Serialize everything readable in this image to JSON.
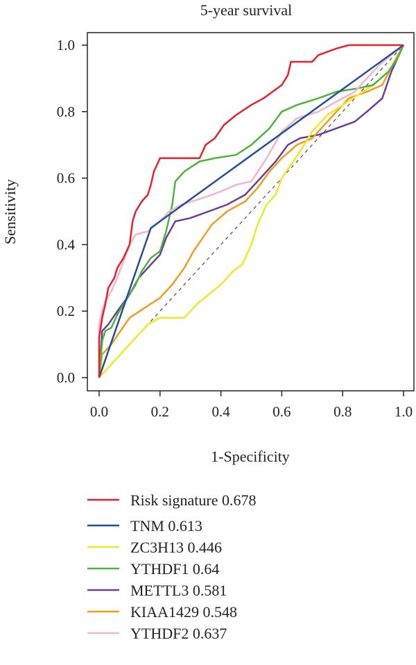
{
  "chart_data": {
    "type": "line",
    "title": "5-year survival",
    "xlabel": "1-Specificity",
    "ylabel": "Sensitivity",
    "xlim": [
      0,
      1
    ],
    "ylim": [
      0,
      1
    ],
    "x_ticks": [
      "0.0",
      "0.2",
      "0.4",
      "0.6",
      "0.8",
      "1.0"
    ],
    "y_ticks": [
      "0.0",
      "0.2",
      "0.4",
      "0.6",
      "0.8",
      "1.0"
    ],
    "reference_line": {
      "style": "dashed",
      "color": "#555555",
      "points": [
        [
          0,
          0
        ],
        [
          1,
          1
        ]
      ]
    },
    "legend_position": "bottom",
    "series": [
      {
        "name": "Risk signature 0.678",
        "color": "#e8202a",
        "points": [
          [
            0,
            0
          ],
          [
            0,
            0.12
          ],
          [
            0.01,
            0.18
          ],
          [
            0.02,
            0.22
          ],
          [
            0.03,
            0.27
          ],
          [
            0.05,
            0.3
          ],
          [
            0.06,
            0.33
          ],
          [
            0.08,
            0.36
          ],
          [
            0.1,
            0.4
          ],
          [
            0.11,
            0.47
          ],
          [
            0.12,
            0.5
          ],
          [
            0.14,
            0.53
          ],
          [
            0.16,
            0.55
          ],
          [
            0.17,
            0.58
          ],
          [
            0.18,
            0.62
          ],
          [
            0.2,
            0.66
          ],
          [
            0.33,
            0.66
          ],
          [
            0.35,
            0.7
          ],
          [
            0.38,
            0.72
          ],
          [
            0.41,
            0.76
          ],
          [
            0.45,
            0.79
          ],
          [
            0.5,
            0.82
          ],
          [
            0.54,
            0.84
          ],
          [
            0.57,
            0.86
          ],
          [
            0.6,
            0.88
          ],
          [
            0.62,
            0.91
          ],
          [
            0.63,
            0.95
          ],
          [
            0.7,
            0.95
          ],
          [
            0.72,
            0.97
          ],
          [
            0.78,
            0.99
          ],
          [
            0.82,
            1.0
          ],
          [
            1.0,
            1.0
          ]
        ]
      },
      {
        "name": "TNM 0.613",
        "color": "#1f4e9c",
        "points": [
          [
            0,
            0
          ],
          [
            0.17,
            0.45
          ],
          [
            1.0,
            1.0
          ]
        ]
      },
      {
        "name": "ZC3H13 0.446",
        "color": "#f2e627",
        "points": [
          [
            0,
            0
          ],
          [
            0.03,
            0.03
          ],
          [
            0.05,
            0.05
          ],
          [
            0.08,
            0.08
          ],
          [
            0.1,
            0.1
          ],
          [
            0.13,
            0.13
          ],
          [
            0.16,
            0.16
          ],
          [
            0.2,
            0.18
          ],
          [
            0.28,
            0.18
          ],
          [
            0.32,
            0.22
          ],
          [
            0.36,
            0.25
          ],
          [
            0.4,
            0.28
          ],
          [
            0.44,
            0.32
          ],
          [
            0.47,
            0.34
          ],
          [
            0.5,
            0.4
          ],
          [
            0.52,
            0.46
          ],
          [
            0.55,
            0.52
          ],
          [
            0.58,
            0.55
          ],
          [
            0.6,
            0.6
          ],
          [
            0.63,
            0.64
          ],
          [
            0.66,
            0.68
          ],
          [
            0.7,
            0.74
          ],
          [
            0.75,
            0.79
          ],
          [
            0.8,
            0.82
          ],
          [
            0.85,
            0.85
          ],
          [
            0.9,
            0.88
          ],
          [
            0.95,
            0.92
          ],
          [
            0.98,
            0.96
          ],
          [
            1.0,
            1.0
          ]
        ]
      },
      {
        "name": "YTHDF1 0.64",
        "color": "#4db33a",
        "points": [
          [
            0,
            0
          ],
          [
            0.01,
            0.11
          ],
          [
            0.02,
            0.14
          ],
          [
            0.04,
            0.15
          ],
          [
            0.06,
            0.19
          ],
          [
            0.08,
            0.22
          ],
          [
            0.12,
            0.28
          ],
          [
            0.14,
            0.32
          ],
          [
            0.17,
            0.36
          ],
          [
            0.2,
            0.38
          ],
          [
            0.22,
            0.44
          ],
          [
            0.24,
            0.52
          ],
          [
            0.25,
            0.59
          ],
          [
            0.28,
            0.62
          ],
          [
            0.33,
            0.65
          ],
          [
            0.38,
            0.66
          ],
          [
            0.45,
            0.67
          ],
          [
            0.5,
            0.7
          ],
          [
            0.56,
            0.75
          ],
          [
            0.6,
            0.8
          ],
          [
            0.65,
            0.82
          ],
          [
            0.72,
            0.84
          ],
          [
            0.78,
            0.86
          ],
          [
            0.85,
            0.87
          ],
          [
            0.9,
            0.88
          ],
          [
            0.95,
            0.92
          ],
          [
            0.98,
            0.96
          ],
          [
            1.0,
            1.0
          ]
        ]
      },
      {
        "name": "METTL3 0.581",
        "color": "#6a3d9a",
        "points": [
          [
            0,
            0
          ],
          [
            0.01,
            0.14
          ],
          [
            0.03,
            0.16
          ],
          [
            0.06,
            0.2
          ],
          [
            0.1,
            0.25
          ],
          [
            0.13,
            0.3
          ],
          [
            0.16,
            0.33
          ],
          [
            0.2,
            0.37
          ],
          [
            0.22,
            0.42
          ],
          [
            0.25,
            0.47
          ],
          [
            0.3,
            0.48
          ],
          [
            0.36,
            0.5
          ],
          [
            0.42,
            0.52
          ],
          [
            0.48,
            0.55
          ],
          [
            0.53,
            0.6
          ],
          [
            0.58,
            0.65
          ],
          [
            0.62,
            0.7
          ],
          [
            0.66,
            0.72
          ],
          [
            0.72,
            0.73
          ],
          [
            0.78,
            0.75
          ],
          [
            0.84,
            0.77
          ],
          [
            0.88,
            0.8
          ],
          [
            0.93,
            0.84
          ],
          [
            0.96,
            0.92
          ],
          [
            1.0,
            1.0
          ]
        ]
      },
      {
        "name": "KIAA1429 0.548",
        "color": "#f39c1c",
        "points": [
          [
            0,
            0
          ],
          [
            0.01,
            0.07
          ],
          [
            0.04,
            0.1
          ],
          [
            0.07,
            0.14
          ],
          [
            0.1,
            0.18
          ],
          [
            0.15,
            0.21
          ],
          [
            0.2,
            0.24
          ],
          [
            0.24,
            0.28
          ],
          [
            0.28,
            0.33
          ],
          [
            0.31,
            0.38
          ],
          [
            0.34,
            0.42
          ],
          [
            0.37,
            0.46
          ],
          [
            0.42,
            0.5
          ],
          [
            0.48,
            0.53
          ],
          [
            0.52,
            0.57
          ],
          [
            0.56,
            0.62
          ],
          [
            0.6,
            0.66
          ],
          [
            0.65,
            0.7
          ],
          [
            0.7,
            0.72
          ],
          [
            0.76,
            0.78
          ],
          [
            0.82,
            0.84
          ],
          [
            0.88,
            0.86
          ],
          [
            0.93,
            0.88
          ],
          [
            0.97,
            0.95
          ],
          [
            1.0,
            1.0
          ]
        ]
      },
      {
        "name": "YTHDF2 0.637",
        "color": "#f7b3c7",
        "points": [
          [
            0,
            0
          ],
          [
            0,
            0.16
          ],
          [
            0.01,
            0.2
          ],
          [
            0.02,
            0.23
          ],
          [
            0.04,
            0.26
          ],
          [
            0.06,
            0.3
          ],
          [
            0.08,
            0.35
          ],
          [
            0.1,
            0.4
          ],
          [
            0.12,
            0.43
          ],
          [
            0.16,
            0.44
          ],
          [
            0.2,
            0.47
          ],
          [
            0.23,
            0.5
          ],
          [
            0.27,
            0.52
          ],
          [
            0.34,
            0.54
          ],
          [
            0.4,
            0.56
          ],
          [
            0.45,
            0.58
          ],
          [
            0.5,
            0.59
          ],
          [
            0.55,
            0.66
          ],
          [
            0.6,
            0.74
          ],
          [
            0.65,
            0.78
          ],
          [
            0.72,
            0.8
          ],
          [
            0.78,
            0.83
          ],
          [
            0.84,
            0.86
          ],
          [
            0.88,
            0.9
          ],
          [
            0.92,
            0.94
          ],
          [
            0.96,
            0.97
          ],
          [
            1.0,
            1.0
          ]
        ]
      }
    ]
  }
}
